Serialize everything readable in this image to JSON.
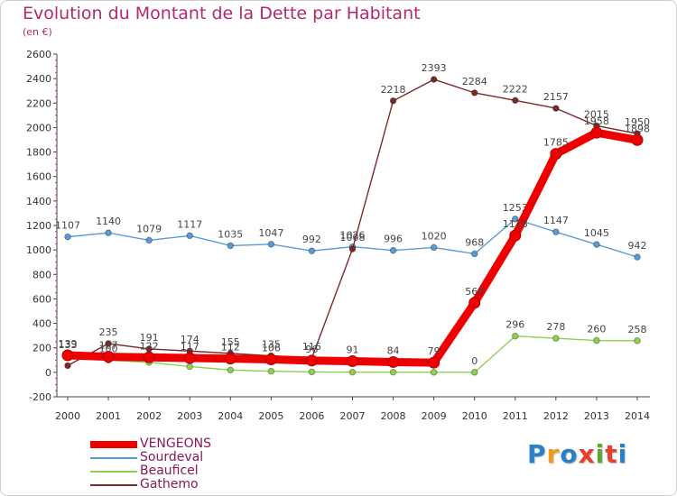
{
  "header": {
    "title": "Evolution du Montant de la Dette par Habitant",
    "subtitle": "(en €)"
  },
  "logo": {
    "text": "Proxiti",
    "letters": [
      "P",
      "r",
      "o",
      "x",
      "i",
      "t",
      "i"
    ],
    "colors": [
      "#2a7fc9",
      "#f39a1e",
      "#2a7fc9",
      "#e8402b",
      "#5aa832",
      "#e8402b",
      "#2a7fc9"
    ]
  },
  "chart_data": {
    "type": "line",
    "title": "Evolution du Montant de la Dette par Habitant",
    "subtitle": "(en €)",
    "xlabel": "",
    "ylabel": "",
    "x": [
      2000,
      2001,
      2002,
      2003,
      2004,
      2005,
      2006,
      2007,
      2008,
      2009,
      2010,
      2011,
      2012,
      2013,
      2014
    ],
    "ylim": [
      -200,
      2600
    ],
    "yticks": [
      -200,
      0,
      200,
      400,
      600,
      800,
      1000,
      1200,
      1400,
      1600,
      1800,
      2000,
      2200,
      2400,
      2600
    ],
    "grid": false,
    "legend": "bottom-left",
    "series": [
      {
        "name": "Sourdeval",
        "color": "#5b9bd5",
        "values": [
          1107,
          1140,
          1079,
          1117,
          1035,
          1047,
          992,
          1026,
          996,
          1020,
          968,
          1253,
          1147,
          1045,
          942
        ],
        "labels": [
          "1107",
          "1140",
          "1079",
          "1117",
          "1035",
          "1047",
          "992",
          "1026",
          "996",
          "1020",
          "968",
          "1253",
          "1147",
          "1045",
          "942"
        ]
      },
      {
        "name": "Beauficel",
        "color": "#8fd14f",
        "values": [
          133,
          100,
          81,
          47,
          19,
          9,
          3,
          1,
          1,
          0,
          0,
          296,
          278,
          260,
          258
        ],
        "labels": [
          "133",
          "100",
          "",
          "",
          "",
          "",
          "",
          "",
          "",
          "",
          "0",
          "296",
          "278",
          "260",
          "258"
        ]
      },
      {
        "name": "Gathemo",
        "color": "#7b2a2a",
        "values": [
          55,
          235,
          191,
          174,
          155,
          135,
          116,
          1008,
          2218,
          2393,
          2284,
          2222,
          2157,
          2015,
          1950
        ],
        "labels": [
          "",
          "235",
          "191",
          "174",
          "155",
          "135",
          "116",
          "1008",
          "2218",
          "2393",
          "2284",
          "2222",
          "2157",
          "2015",
          "1950"
        ]
      },
      {
        "name": "VENGEONS",
        "color": "#ee0000",
        "values": [
          139,
          127,
          122,
          117,
          112,
          106,
          96,
          91,
          84,
          79,
          568,
          1118,
          1785,
          1958,
          1898
        ],
        "labels": [
          "139",
          "127",
          "122",
          "117",
          "112",
          "106",
          "96",
          "91",
          "84",
          "79",
          "568",
          "1118",
          "1785",
          "1958",
          "1898"
        ]
      }
    ],
    "legend_entries": [
      {
        "name": "VENGEONS",
        "color": "#ee0000"
      },
      {
        "name": "Sourdeval",
        "color": "#5b9bd5"
      },
      {
        "name": "Beauficel",
        "color": "#8fd14f"
      },
      {
        "name": "Gathemo",
        "color": "#7b2a2a"
      }
    ]
  }
}
